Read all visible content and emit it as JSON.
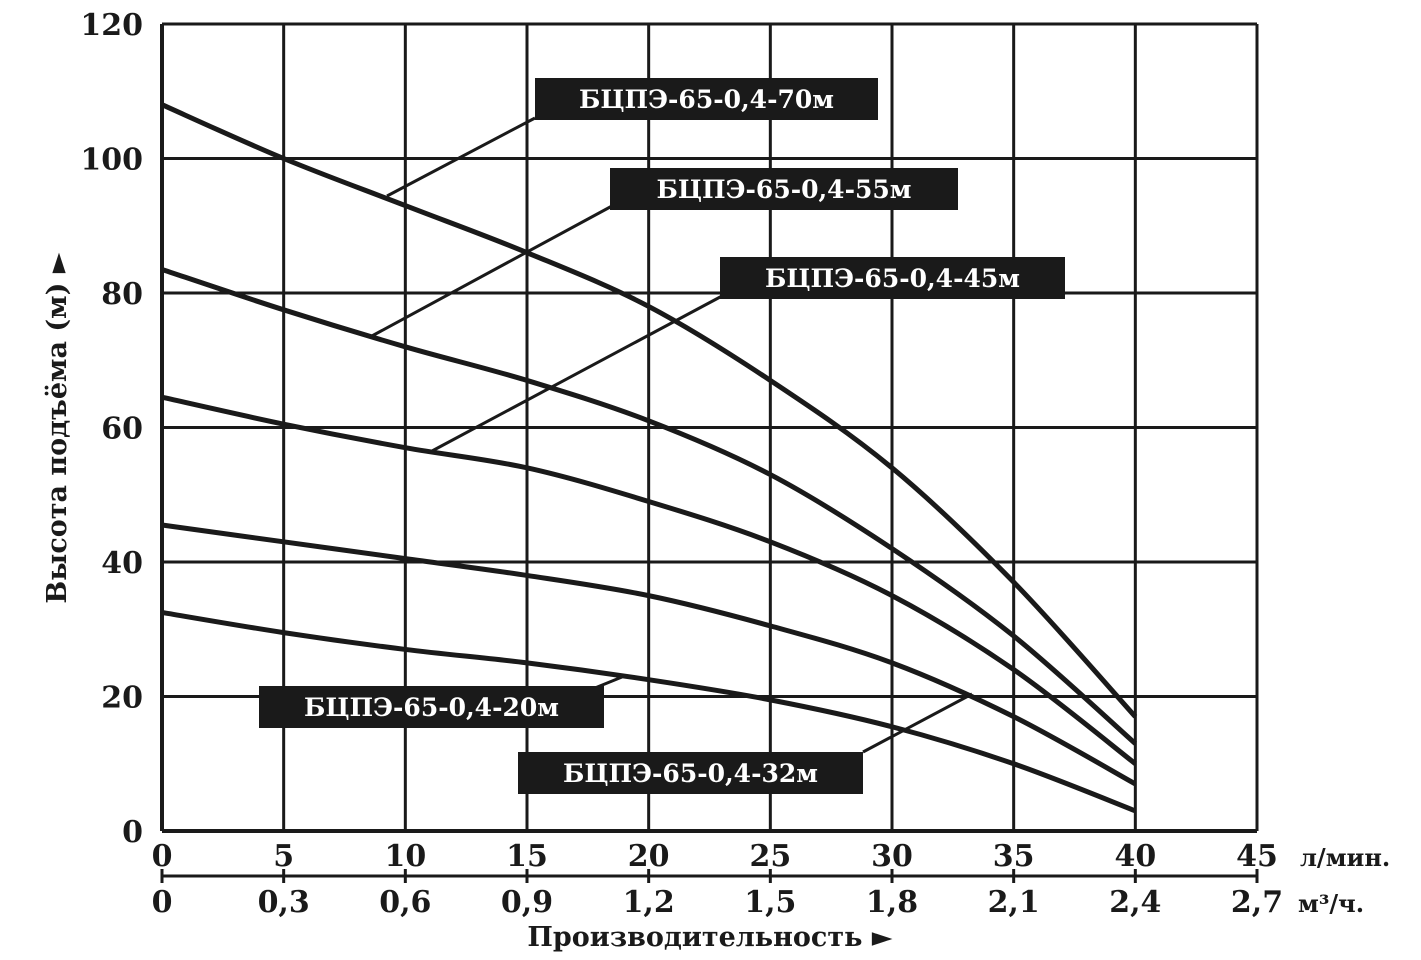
{
  "chart_data": {
    "type": "line",
    "ylabel": "Высота подъёма (м) ►",
    "xlabel": "Производительность ►",
    "x_unit": "л/мин.",
    "x2_unit": "м³/ч.",
    "xlim": [
      0,
      45
    ],
    "ylim": [
      0,
      120
    ],
    "grid": true,
    "x_ticks": [
      "0",
      "5",
      "10",
      "15",
      "20",
      "25",
      "30",
      "35",
      "40",
      "45"
    ],
    "x2_ticks": [
      "0",
      "0,3",
      "0,6",
      "0,9",
      "1,2",
      "1,5",
      "1,8",
      "2,1",
      "2,4",
      "2,7"
    ],
    "y_ticks": [
      "0",
      "20",
      "40",
      "60",
      "80",
      "100",
      "120"
    ],
    "x": [
      0,
      5,
      10,
      15,
      20,
      25,
      30,
      35,
      40
    ],
    "series": [
      {
        "name": "БЦПЭ-65-0,4-70м",
        "values": [
          108,
          100,
          93,
          86,
          78,
          67,
          54,
          37,
          17
        ]
      },
      {
        "name": "БЦПЭ-65-0,4-55м",
        "values": [
          83.5,
          77.5,
          72,
          67,
          61,
          53,
          42,
          29,
          13
        ]
      },
      {
        "name": "БЦПЭ-65-0,4-45м",
        "values": [
          64.5,
          60.5,
          57,
          54,
          49,
          43,
          35,
          24,
          10
        ]
      },
      {
        "name": "БЦПЭ-65-0,4-32м",
        "values": [
          45.5,
          43,
          40.5,
          38,
          35,
          30.5,
          25,
          17,
          7
        ]
      },
      {
        "name": "БЦПЭ-65-0,4-20м",
        "values": [
          32.5,
          29.5,
          27,
          25,
          22.5,
          19.5,
          15.5,
          10,
          3
        ]
      }
    ],
    "labels": [
      {
        "text": "БЦПЭ-65-0,4-70м",
        "series": 0
      },
      {
        "text": "БЦПЭ-65-0,4-55м",
        "series": 1
      },
      {
        "text": "БЦПЭ-65-0,4-45м",
        "series": 2
      },
      {
        "text": "БЦПЭ-65-0,4-20м",
        "series": 4
      },
      {
        "text": "БЦПЭ-65-0,4-32м",
        "series": 3
      }
    ]
  }
}
